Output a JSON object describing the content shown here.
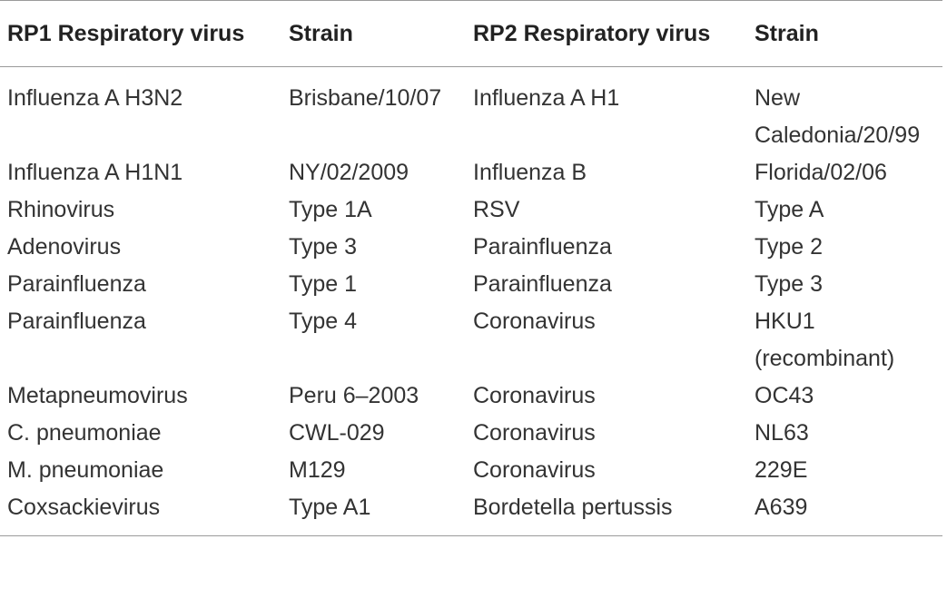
{
  "table": {
    "headers": [
      "RP1 Respiratory virus",
      "Strain",
      "RP2 Respiratory virus",
      "Strain"
    ],
    "rows": [
      [
        "Influenza A H3N2",
        "Brisbane/10/07",
        "Influenza A H1",
        "New Caledonia/20/99"
      ],
      [
        "Influenza A H1N1",
        "NY/02/2009",
        "Influenza B",
        "Florida/02/06"
      ],
      [
        "Rhinovirus",
        "Type 1A",
        "RSV",
        "Type A"
      ],
      [
        "Adenovirus",
        "Type 3",
        "Parainfluenza",
        "Type 2"
      ],
      [
        "Parainfluenza",
        "Type 1",
        "Parainfluenza",
        "Type 3"
      ],
      [
        "Parainfluenza",
        "Type 4",
        "Coronavirus",
        "HKU1 (recombinant)"
      ],
      [
        "Metapneumovirus",
        "Peru 6–2003",
        "Coronavirus",
        "OC43"
      ],
      [
        "C. pneumoniae",
        "CWL-029",
        "Coronavirus",
        "NL63"
      ],
      [
        "M. pneumoniae",
        "M129",
        "Coronavirus",
        "229E"
      ],
      [
        "Coxsackievirus",
        "Type A1",
        "Bordetella pertussis",
        "A639"
      ]
    ]
  }
}
